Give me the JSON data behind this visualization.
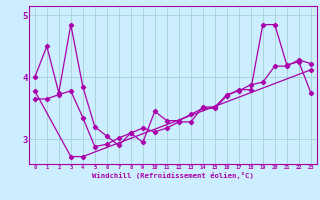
{
  "xlabel": "Windchill (Refroidissement éolien,°C)",
  "bg_color": "#cceeff",
  "line_color": "#aa00aa",
  "grid_color": "#99cccc",
  "xlim": [
    -0.5,
    23.5
  ],
  "ylim": [
    2.6,
    5.15
  ],
  "yticks": [
    3,
    4,
    5
  ],
  "xticks": [
    0,
    1,
    2,
    3,
    4,
    5,
    6,
    7,
    8,
    9,
    10,
    11,
    12,
    13,
    14,
    15,
    16,
    17,
    18,
    19,
    20,
    21,
    22,
    23
  ],
  "series1_x": [
    0,
    1,
    2,
    3,
    4,
    5,
    6,
    7,
    8,
    9,
    10,
    11,
    12,
    13,
    14,
    15,
    16,
    17,
    18,
    19,
    20,
    21,
    22,
    23
  ],
  "series1_y": [
    4.0,
    4.5,
    3.75,
    4.85,
    3.85,
    3.2,
    3.05,
    2.9,
    3.1,
    2.95,
    3.45,
    3.3,
    3.3,
    3.4,
    3.5,
    3.5,
    3.7,
    3.8,
    3.8,
    4.85,
    4.85,
    4.2,
    4.25,
    3.75
  ],
  "series2_x": [
    0,
    1,
    2,
    3,
    4,
    5,
    6,
    7,
    8,
    9,
    10,
    11,
    12,
    13,
    14,
    15,
    16,
    17,
    18,
    19,
    20,
    21,
    22,
    23
  ],
  "series2_y": [
    3.65,
    3.65,
    3.72,
    3.78,
    3.35,
    2.88,
    2.92,
    3.02,
    3.1,
    3.18,
    3.12,
    3.18,
    3.28,
    3.28,
    3.52,
    3.52,
    3.72,
    3.78,
    3.88,
    3.92,
    4.18,
    4.18,
    4.28,
    4.22
  ],
  "series3_x": [
    0,
    3,
    4,
    23
  ],
  "series3_y": [
    3.78,
    2.72,
    2.72,
    4.12
  ]
}
